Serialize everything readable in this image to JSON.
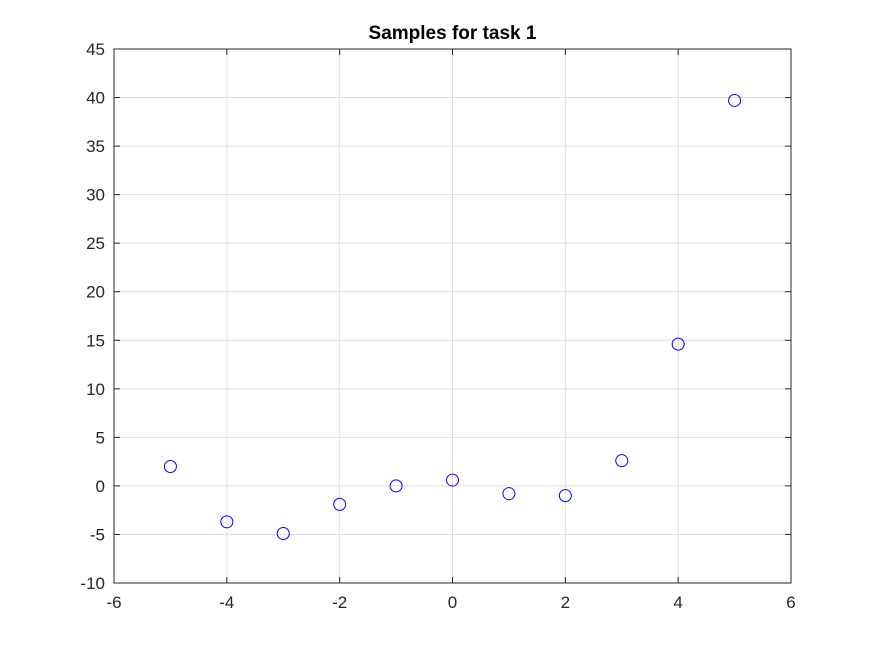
{
  "chart_data": {
    "type": "scatter",
    "title": "Samples for task 1",
    "xlabel": "",
    "ylabel": "",
    "xlim": [
      -6,
      6
    ],
    "ylim": [
      -10,
      45
    ],
    "xticks": [
      -6,
      -4,
      -2,
      0,
      2,
      4,
      6
    ],
    "yticks": [
      -10,
      -5,
      0,
      5,
      10,
      15,
      20,
      25,
      30,
      35,
      40,
      45
    ],
    "grid": true,
    "legend": "none",
    "marker": "open-circle",
    "colors": {
      "marker": "#0000ff",
      "grid": "#dfdfdf",
      "axis": "#262626"
    },
    "series": [
      {
        "x": [
          -5,
          -4,
          -3,
          -2,
          -1,
          0,
          1,
          2,
          3,
          4,
          5
        ],
        "y": [
          2.0,
          -3.7,
          -4.9,
          -1.9,
          0.0,
          0.6,
          -0.8,
          -1.0,
          2.6,
          14.6,
          39.7
        ]
      }
    ]
  }
}
